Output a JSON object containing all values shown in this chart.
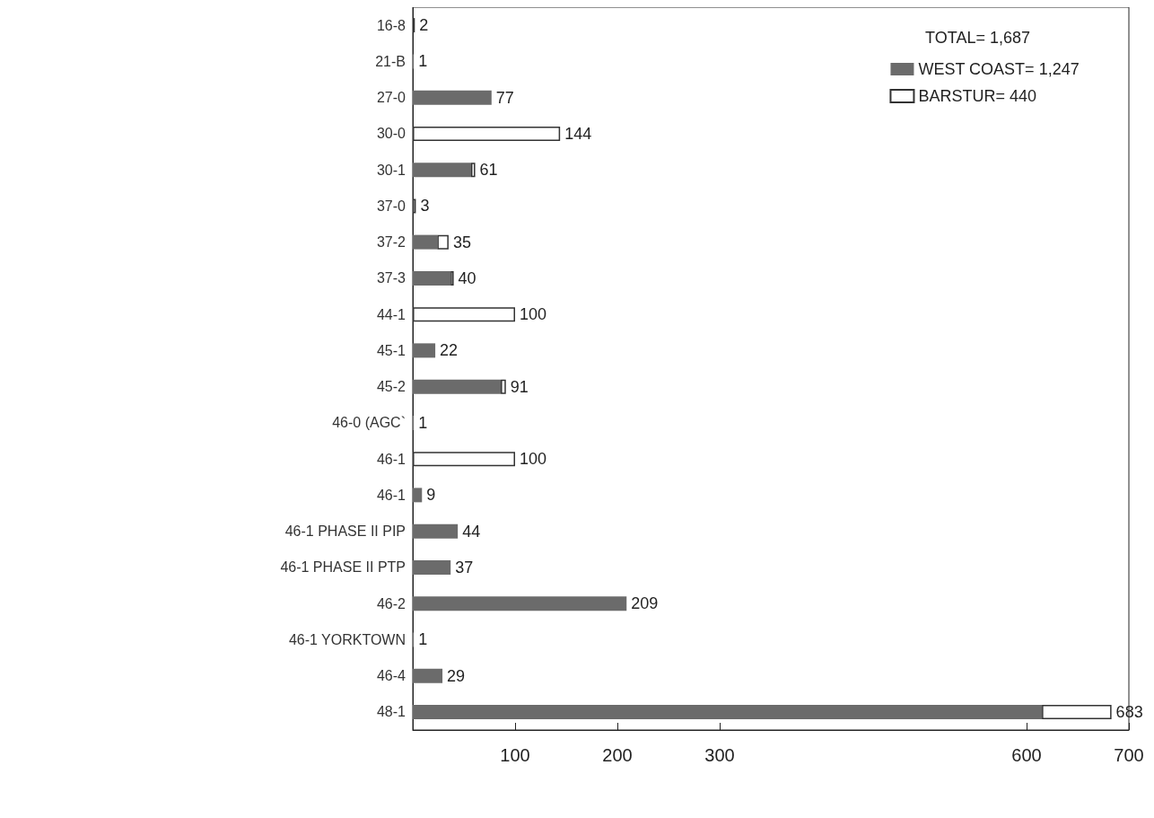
{
  "chart_data": {
    "type": "bar",
    "orientation": "horizontal",
    "stacked": true,
    "categories": [
      "16-8",
      "21-B",
      "27-0",
      "30-0",
      "30-1",
      "37-0",
      "37-2",
      "37-3",
      "44-1",
      "45-1",
      "45-2",
      "46-0 (AGC`",
      "46-1",
      "46-1",
      "46-1 PHASE II PIP",
      "46-1 PHASE II PTP",
      "46-2",
      "46-1 YORKTOWN",
      "46-4",
      "48-1"
    ],
    "series": [
      {
        "name": "WEST COAST= 1,247",
        "color": "#6b6b6b",
        "values": [
          0,
          1,
          77,
          0,
          57,
          0,
          24,
          37,
          0,
          22,
          86,
          1,
          0,
          9,
          44,
          37,
          209,
          1,
          29,
          615
        ]
      },
      {
        "name": "BARSTUR= 440",
        "color": "#ffffff",
        "values": [
          2,
          0,
          0,
          144,
          4,
          3,
          11,
          3,
          100,
          0,
          5,
          0,
          100,
          0,
          0,
          0,
          0,
          0,
          0,
          68
        ]
      }
    ],
    "totals": [
      "2",
      "1",
      "77",
      "144",
      "61",
      "3",
      "35",
      "40",
      "100",
      "22",
      "91",
      "1",
      "100",
      "9",
      "44",
      "37",
      "209",
      "1",
      "29",
      "683"
    ],
    "legend_title": "TOTAL= 1,687",
    "legend": "top right",
    "xlim": [
      0,
      700
    ],
    "xticks": [
      100,
      200,
      300,
      600,
      700
    ],
    "grid": false
  }
}
